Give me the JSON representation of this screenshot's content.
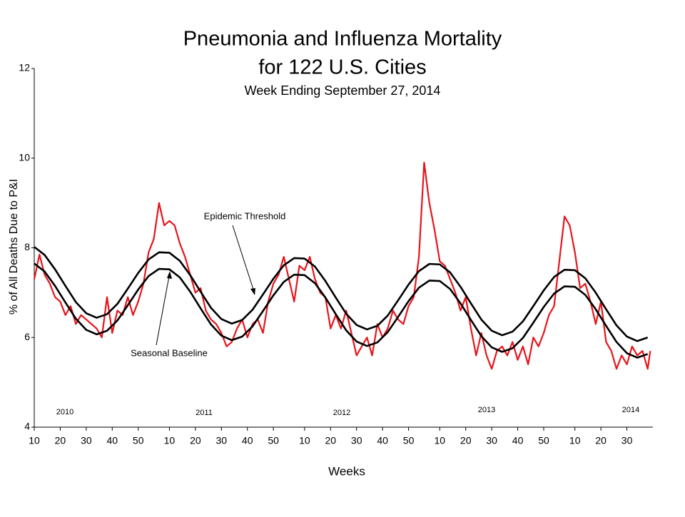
{
  "chart_data": {
    "type": "line",
    "title": "Pneumonia and Influenza Mortality",
    "subtitle": "for 122 U.S. Cities",
    "subtitle2": "Week Ending September 27, 2014",
    "y_label": "% of All Deaths Due to P&I",
    "x_label": "Weeks",
    "year_labels": [
      "2010",
      "2011",
      "2012",
      "2013",
      "2014"
    ],
    "annotations": [
      "Epidemic Threshold",
      "Seasonal Baseline"
    ],
    "xlim": [
      0,
      238
    ],
    "ylim": [
      4,
      12
    ],
    "yticks": [
      4,
      6,
      8,
      10,
      12
    ],
    "xticks": [
      {
        "value": 0,
        "label": "10"
      },
      {
        "value": 10,
        "label": "20"
      },
      {
        "value": 20,
        "label": "30"
      },
      {
        "value": 30,
        "label": "40"
      },
      {
        "value": 40,
        "label": "50"
      },
      {
        "value": 52,
        "label": "10"
      },
      {
        "value": 62,
        "label": "20"
      },
      {
        "value": 72,
        "label": "30"
      },
      {
        "value": 82,
        "label": "40"
      },
      {
        "value": 92,
        "label": "50"
      },
      {
        "value": 104,
        "label": "10"
      },
      {
        "value": 114,
        "label": "20"
      },
      {
        "value": 124,
        "label": "30"
      },
      {
        "value": 134,
        "label": "40"
      },
      {
        "value": 144,
        "label": "50"
      },
      {
        "value": 156,
        "label": "10"
      },
      {
        "value": 166,
        "label": "20"
      },
      {
        "value": 176,
        "label": "30"
      },
      {
        "value": 186,
        "label": "40"
      },
      {
        "value": 196,
        "label": "50"
      },
      {
        "value": 208,
        "label": "10"
      },
      {
        "value": 218,
        "label": "20"
      },
      {
        "value": 228,
        "label": "30"
      }
    ],
    "series": [
      {
        "color": "#e8141b",
        "x": [
          0,
          2,
          4,
          6,
          8,
          10,
          12,
          14,
          16,
          18,
          20,
          22,
          24,
          26,
          28,
          30,
          32,
          34,
          36,
          38,
          40,
          42,
          44,
          46,
          48,
          50,
          52,
          54,
          56,
          58,
          60,
          62,
          64,
          66,
          68,
          70,
          72,
          74,
          76,
          78,
          80,
          82,
          84,
          86,
          88,
          90,
          92,
          94,
          96,
          98,
          100,
          102,
          104,
          106,
          108,
          110,
          112,
          114,
          116,
          118,
          120,
          122,
          124,
          126,
          128,
          130,
          132,
          134,
          136,
          138,
          140,
          142,
          144,
          146,
          148,
          150,
          152,
          154,
          156,
          158,
          160,
          162,
          164,
          166,
          168,
          170,
          172,
          174,
          176,
          178,
          180,
          182,
          184,
          186,
          188,
          190,
          192,
          194,
          196,
          198,
          200,
          202,
          204,
          206,
          208,
          210,
          212,
          214,
          216,
          218,
          220,
          222,
          224,
          226,
          228,
          230,
          232,
          234,
          236,
          237
        ],
        "values": [
          7.3,
          7.85,
          7.4,
          7.2,
          6.9,
          6.8,
          6.5,
          6.7,
          6.3,
          6.5,
          6.4,
          6.3,
          6.2,
          6.0,
          6.9,
          6.1,
          6.6,
          6.5,
          6.9,
          6.5,
          6.8,
          7.2,
          7.9,
          8.2,
          9.0,
          8.5,
          8.6,
          8.5,
          8.1,
          7.8,
          7.4,
          7.0,
          7.1,
          6.6,
          6.4,
          6.3,
          6.1,
          5.8,
          5.9,
          6.2,
          6.4,
          6.0,
          6.3,
          6.4,
          6.1,
          6.8,
          7.2,
          7.4,
          7.8,
          7.3,
          6.8,
          7.6,
          7.5,
          7.8,
          7.3,
          7.0,
          6.9,
          6.2,
          6.5,
          6.2,
          6.6,
          6.1,
          5.6,
          5.8,
          6.0,
          5.6,
          6.3,
          6.0,
          6.2,
          6.6,
          6.4,
          6.3,
          6.7,
          6.9,
          7.8,
          9.9,
          9.0,
          8.4,
          7.7,
          7.6,
          7.3,
          7.0,
          6.6,
          6.9,
          6.2,
          5.6,
          6.1,
          5.6,
          5.3,
          5.7,
          5.8,
          5.6,
          5.9,
          5.5,
          5.8,
          5.4,
          6.0,
          5.8,
          6.1,
          6.5,
          6.7,
          7.7,
          8.7,
          8.5,
          7.9,
          7.1,
          7.2,
          6.8,
          6.3,
          6.8,
          5.9,
          5.7,
          5.3,
          5.6,
          5.4,
          5.8,
          5.6,
          5.7,
          5.3,
          5.7
        ]
      },
      {
        "color": "#000000",
        "x": [
          0,
          4,
          8,
          12,
          16,
          20,
          24,
          28,
          32,
          36,
          40,
          44,
          48,
          52,
          56,
          60,
          64,
          68,
          72,
          76,
          80,
          84,
          88,
          92,
          96,
          100,
          104,
          108,
          112,
          116,
          120,
          124,
          128,
          132,
          136,
          140,
          144,
          148,
          152,
          156,
          160,
          164,
          168,
          172,
          176,
          180,
          184,
          188,
          192,
          196,
          200,
          204,
          208,
          212,
          216,
          220,
          224,
          228,
          232,
          236
        ],
        "values": [
          8.02,
          7.84,
          7.52,
          7.15,
          6.79,
          6.54,
          6.44,
          6.52,
          6.75,
          7.09,
          7.44,
          7.74,
          7.9,
          7.89,
          7.71,
          7.39,
          7.02,
          6.66,
          6.41,
          6.31,
          6.39,
          6.62,
          6.96,
          7.31,
          7.61,
          7.77,
          7.76,
          7.58,
          7.26,
          6.89,
          6.53,
          6.28,
          6.18,
          6.26,
          6.49,
          6.83,
          7.18,
          7.48,
          7.64,
          7.63,
          7.45,
          7.13,
          6.76,
          6.4,
          6.15,
          6.05,
          6.13,
          6.36,
          6.7,
          7.05,
          7.35,
          7.51,
          7.5,
          7.32,
          7.0,
          6.63,
          6.27,
          6.02,
          5.92,
          6.0
        ]
      },
      {
        "color": "#000000",
        "x": [
          0,
          4,
          8,
          12,
          16,
          20,
          24,
          28,
          32,
          36,
          40,
          44,
          48,
          52,
          56,
          60,
          64,
          68,
          72,
          76,
          80,
          84,
          88,
          92,
          96,
          100,
          104,
          108,
          112,
          116,
          120,
          124,
          128,
          132,
          136,
          140,
          144,
          148,
          152,
          156,
          160,
          164,
          168,
          172,
          176,
          180,
          184,
          188,
          192,
          196,
          200,
          204,
          208,
          212,
          216,
          220,
          224,
          228,
          232,
          236
        ],
        "values": [
          7.65,
          7.47,
          7.15,
          6.78,
          6.42,
          6.17,
          6.07,
          6.15,
          6.38,
          6.72,
          7.07,
          7.37,
          7.53,
          7.52,
          7.34,
          7.02,
          6.65,
          6.29,
          6.04,
          5.94,
          6.02,
          6.25,
          6.59,
          6.94,
          7.24,
          7.4,
          7.39,
          7.21,
          6.89,
          6.52,
          6.16,
          5.91,
          5.81,
          5.89,
          6.12,
          6.46,
          6.81,
          7.11,
          7.27,
          7.26,
          7.08,
          6.76,
          6.39,
          6.03,
          5.78,
          5.68,
          5.76,
          5.99,
          6.33,
          6.68,
          6.98,
          7.14,
          7.13,
          6.95,
          6.63,
          6.26,
          5.9,
          5.65,
          5.55,
          5.63
        ]
      }
    ]
  }
}
